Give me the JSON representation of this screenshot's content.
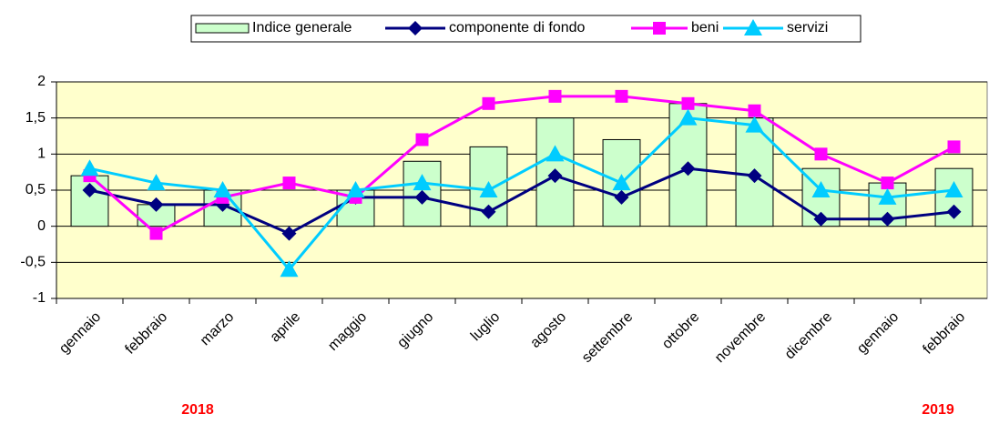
{
  "chart_data": {
    "type": "bar",
    "categories": [
      "gennaio",
      "febbraio",
      "marzo",
      "aprile",
      "maggio",
      "giugno",
      "luglio",
      "agosto",
      "settembre",
      "ottobre",
      "novembre",
      "dicembre",
      "gennaio",
      "febbraio"
    ],
    "series": [
      {
        "name": "Indice generale",
        "type": "bar",
        "color": "#ccffcc",
        "values": [
          0.7,
          0.3,
          0.5,
          0,
          0.5,
          0.9,
          1.1,
          1.5,
          1.2,
          1.7,
          1.5,
          0.8,
          0.6,
          0.8
        ]
      },
      {
        "name": "componente di fondo",
        "type": "line",
        "marker": "diamond",
        "color": "#000080",
        "values": [
          0.5,
          0.3,
          0.3,
          -0.1,
          0.4,
          0.4,
          0.2,
          0.7,
          0.4,
          0.8,
          0.7,
          0.1,
          0.1,
          0.2
        ]
      },
      {
        "name": "beni",
        "type": "line",
        "marker": "square",
        "color": "#ff00ff",
        "values": [
          0.7,
          -0.1,
          0.4,
          0.6,
          0.4,
          1.2,
          1.7,
          1.8,
          1.8,
          1.7,
          1.6,
          1.0,
          0.6,
          1.1
        ]
      },
      {
        "name": "servizi",
        "type": "line",
        "marker": "triangle",
        "color": "#00ccff",
        "values": [
          0.8,
          0.6,
          0.5,
          -0.6,
          0.5,
          0.6,
          0.5,
          1.0,
          0.6,
          1.5,
          1.4,
          0.5,
          0.4,
          0.5
        ]
      }
    ],
    "ylim": [
      -1,
      2
    ],
    "yticks": [
      -1,
      {
        "value": -0.5,
        "label": "-0,5"
      },
      0,
      {
        "value": 0.5,
        "label": "0,5"
      },
      1,
      {
        "value": 1.5,
        "label": "1,5"
      },
      2
    ],
    "grid": true,
    "legend": "top",
    "year_labels": [
      "2018",
      "2019"
    ],
    "year_label_color": "#ff0000",
    "plot_background": "#ffffcc"
  }
}
